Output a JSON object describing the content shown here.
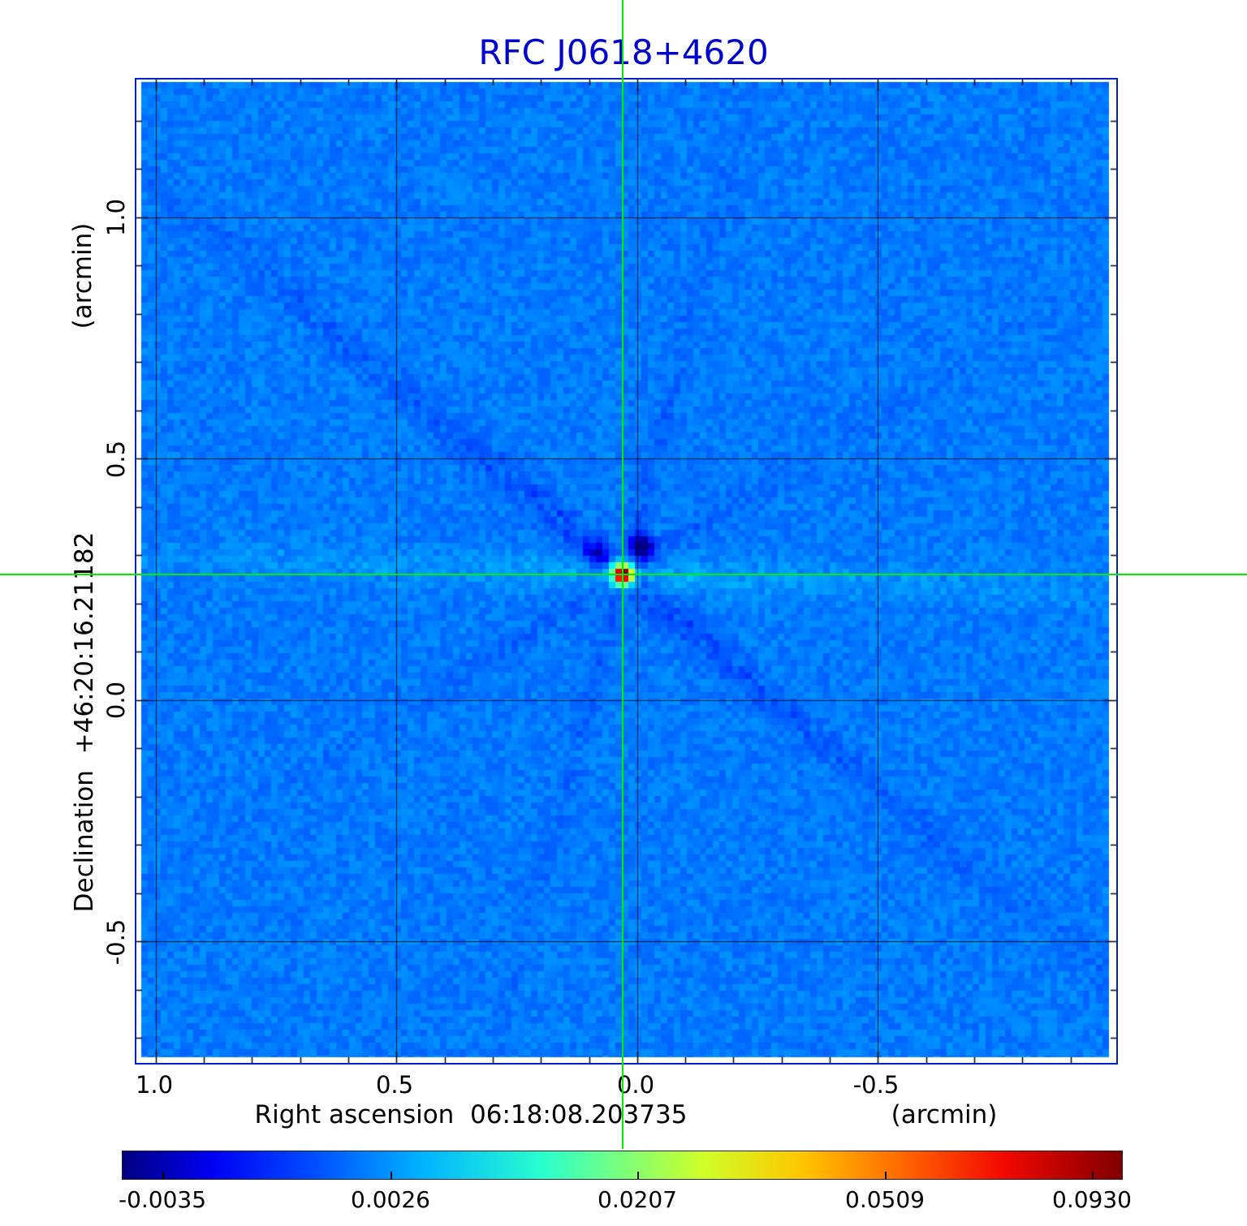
{
  "title": "RFC J0618+4620",
  "colors": {
    "title": "#0000cd",
    "frame": "#0022cc",
    "crosshair": "#00ee00",
    "background_sky": "#0080ff"
  },
  "axes": {
    "y_unit": "(arcmin)",
    "y_label": "Declination  +46:20:16.21182",
    "y_ticks": [
      "1.0",
      "0.5",
      "0.0",
      "-0.5"
    ],
    "x_ticks": [
      "1.0",
      "0.5",
      "0.0",
      "-0.5"
    ],
    "x_label": "Right ascension  06:18:08.203735",
    "x_unit": "(arcmin)"
  },
  "colorbar": {
    "labels": [
      "-0.0035",
      "0.0026",
      "0.0207",
      "0.0509",
      "0.0930"
    ]
  },
  "chart_data": {
    "type": "heatmap",
    "title": "RFC J0618+4620",
    "xlabel": "Right ascension 06:18:08.203735 (arcmin)",
    "ylabel": "Declination +46:20:16.21182 (arcmin)",
    "x_ticks": [
      1.0,
      0.5,
      0.0,
      -0.5
    ],
    "y_ticks": [
      1.0,
      0.5,
      0.0,
      -0.5
    ],
    "x_range": [
      1.03,
      -0.98
    ],
    "y_range": [
      1.28,
      -0.74
    ],
    "grid": true,
    "colormap": "jet",
    "colorbar_values": [
      -0.0035,
      0.0026,
      0.0207,
      0.0509,
      0.093
    ],
    "background_level": 0.0,
    "peak_value": 0.093,
    "source": {
      "x_arcmin": 0.03,
      "y_arcmin": 0.26
    },
    "crosshair_arcmin": {
      "x": 0.03,
      "y": 0.26
    }
  }
}
